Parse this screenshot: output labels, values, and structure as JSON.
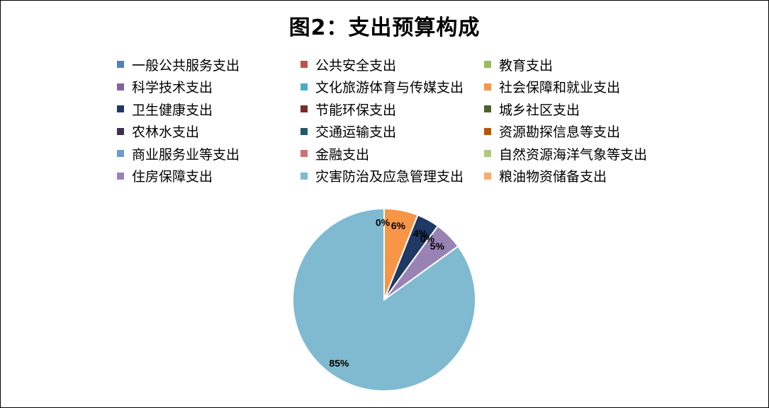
{
  "chart_data": {
    "type": "pie",
    "title": "图2：支出预算构成",
    "categories": [
      "一般公共服务支出",
      "公共安全支出",
      "教育支出",
      "科学技术支出",
      "文化旅游体育与传媒支出",
      "社会保障和就业支出",
      "卫生健康支出",
      "节能环保支出",
      "城乡社区支出",
      "农林水支出",
      "交通运输支出",
      "资源勘探信息等支出",
      "商业服务业等支出",
      "金融支出",
      "自然资源海洋气象等支出",
      "住房保障支出",
      "灾害防治及应急管理支出",
      "粮油物资储备支出"
    ],
    "values": [
      0,
      0,
      0,
      0,
      0,
      6,
      4,
      0,
      0,
      0,
      0,
      0,
      0,
      0,
      0,
      5,
      85,
      0
    ],
    "data_labels": [
      "",
      "",
      "",
      "",
      "",
      "6%",
      "4%",
      "",
      "",
      "",
      "",
      "",
      "",
      "",
      "",
      "5%",
      "85%",
      ""
    ],
    "colors": [
      "#4F81BD",
      "#C0504D",
      "#9BBB59",
      "#8064A2",
      "#4BACC6",
      "#F79646",
      "#1F3864",
      "#772C2A",
      "#4F6228",
      "#3F3151",
      "#215968",
      "#B65708",
      "#729ACA",
      "#CD7371",
      "#AFC97A",
      "#9983B5",
      "#7FBAD0",
      "#F9AB6B"
    ],
    "zero_labels": [
      "0%",
      "0%"
    ],
    "legend_position": "top"
  }
}
